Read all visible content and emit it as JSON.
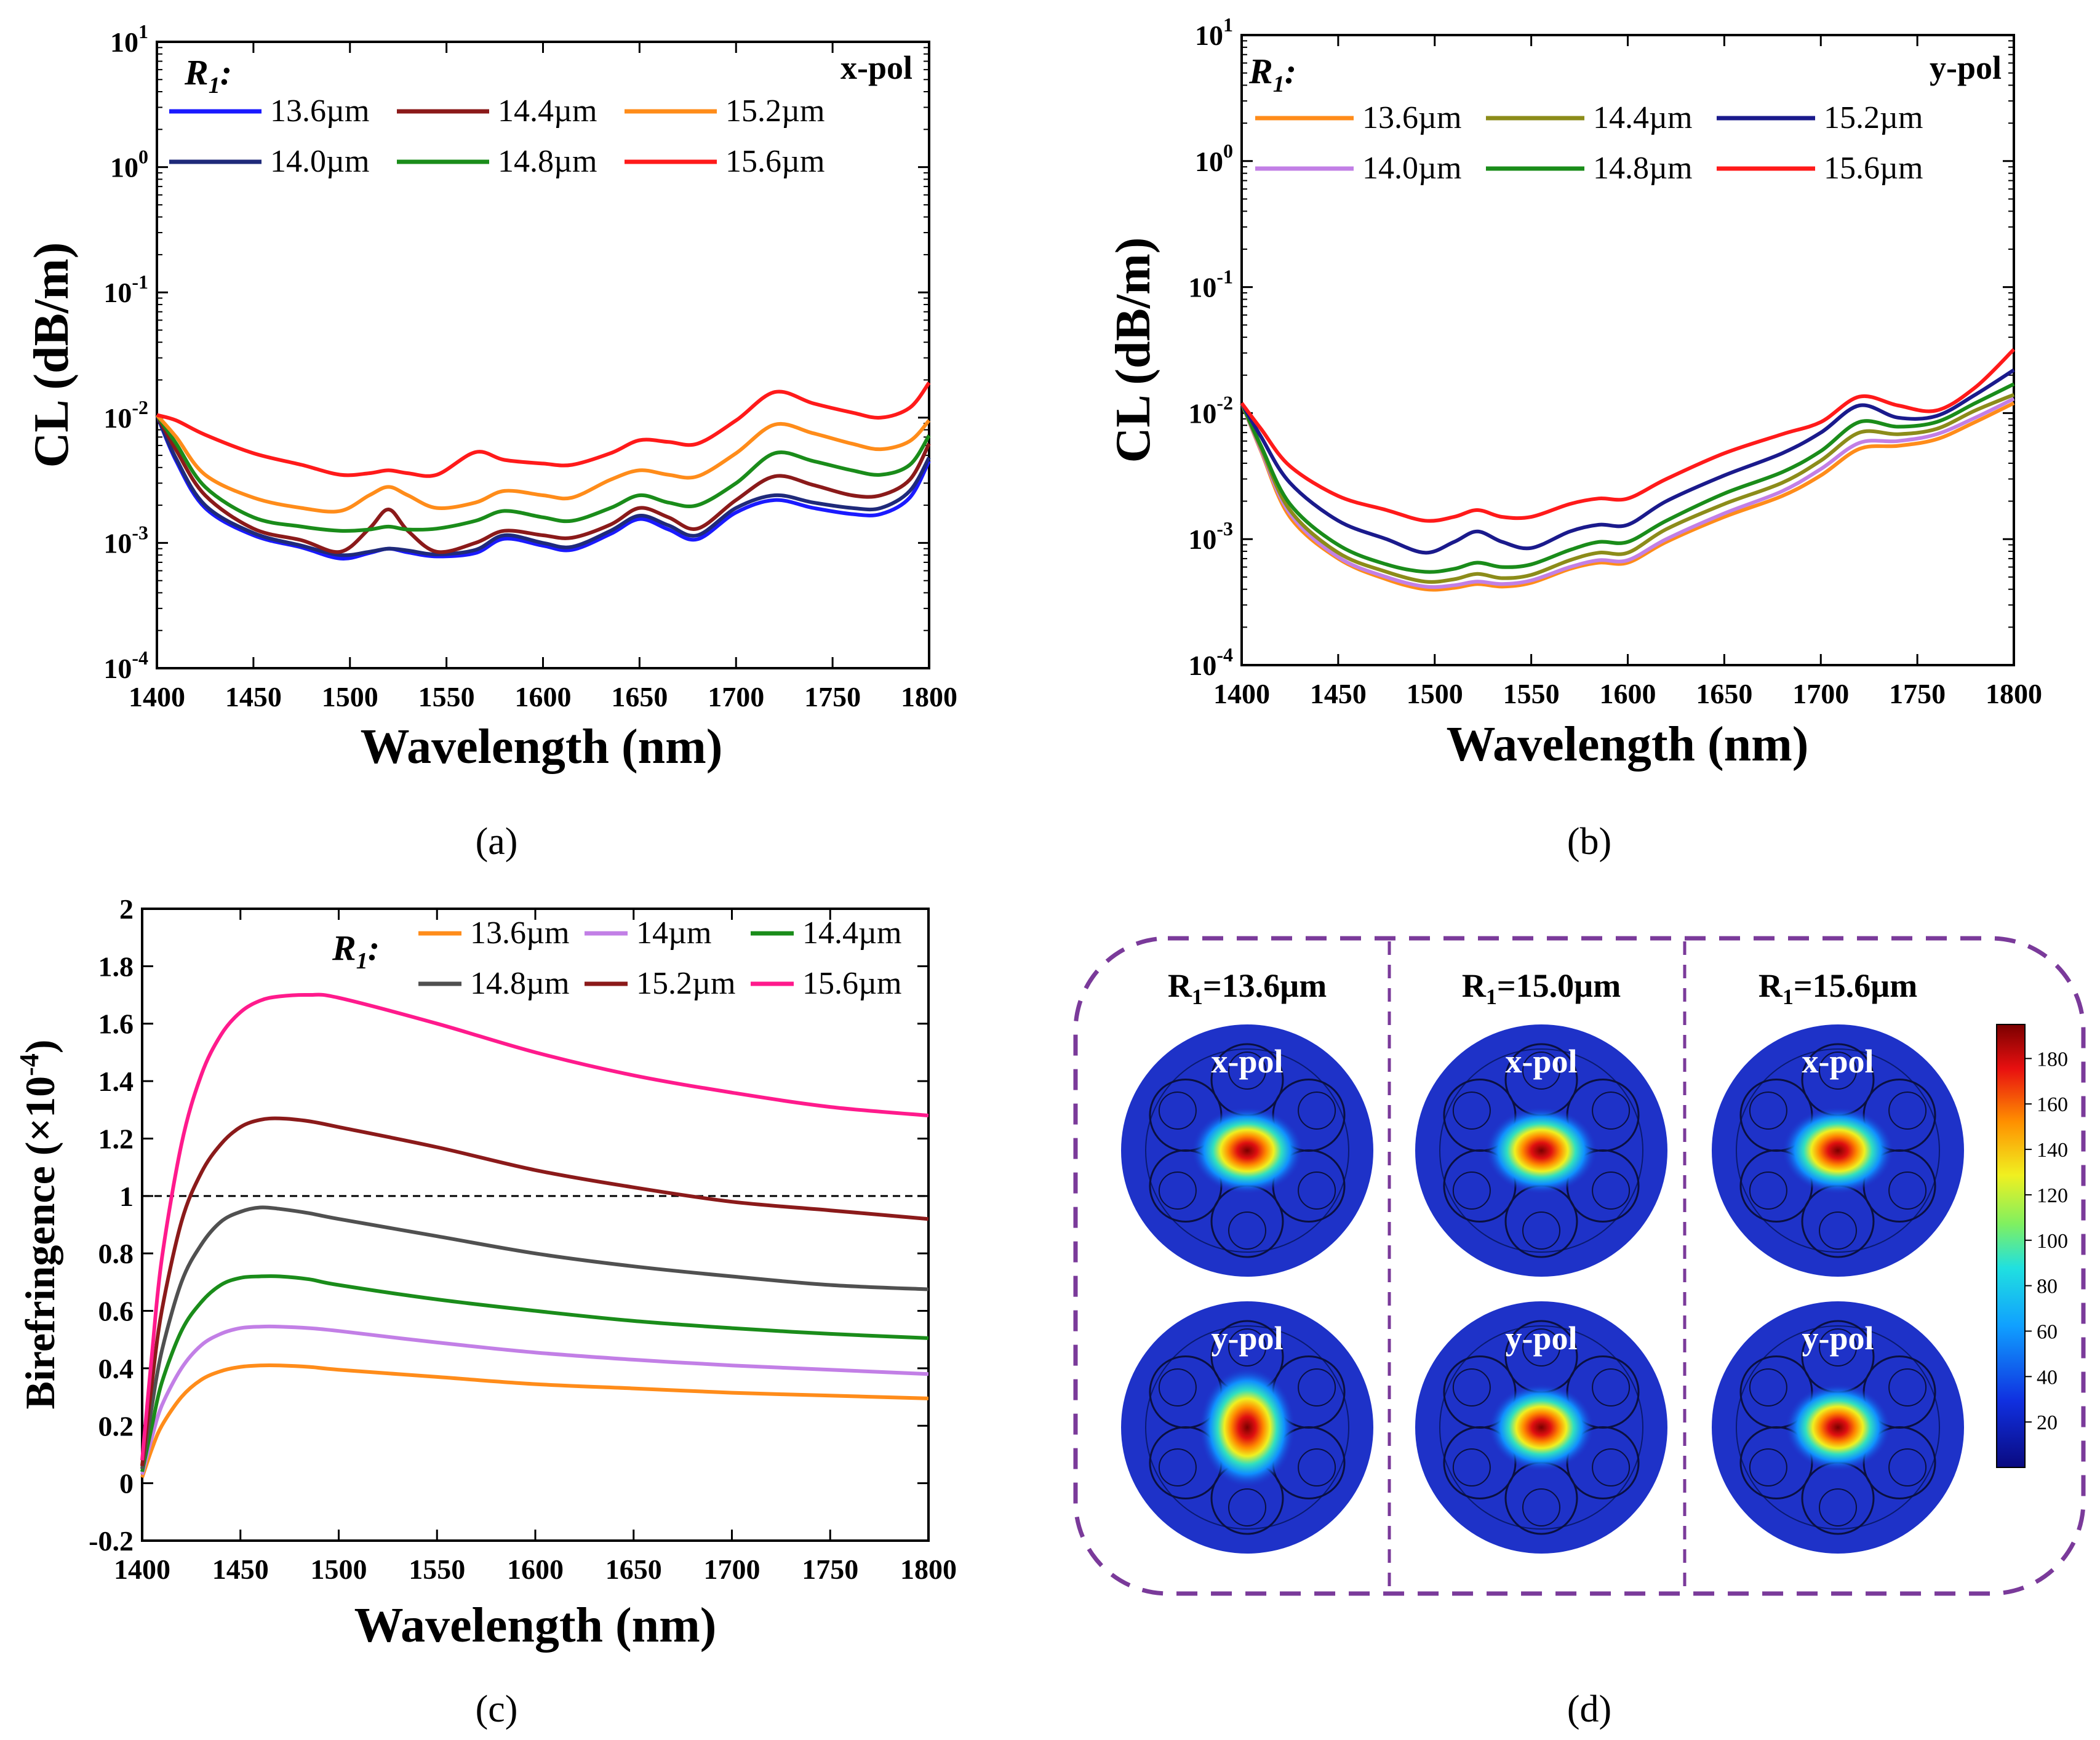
{
  "chart_data": [
    {
      "type": "line",
      "panel_label": "(a)",
      "polarization": "x-pol",
      "legend_title": "R1:",
      "legend_title_main": "R",
      "legend_title_sub": "1",
      "legend_title_colon": ":",
      "xlabel": "Wavelength (nm)",
      "ylabel": "CL (dB/m)",
      "xlim": [
        1400,
        1800
      ],
      "ylim": [
        0.0001,
        10
      ],
      "yscale": "log",
      "xticks": [
        1400,
        1450,
        1500,
        1550,
        1600,
        1650,
        1700,
        1750,
        1800
      ],
      "yticks": [
        {
          "base": "10",
          "exp": "-4"
        },
        {
          "base": "10",
          "exp": "-3"
        },
        {
          "base": "10",
          "exp": "-2"
        },
        {
          "base": "10",
          "exp": "-1"
        },
        {
          "base": "10",
          "exp": "0"
        },
        {
          "base": "10",
          "exp": "1"
        }
      ],
      "x": [
        1400,
        1410,
        1425,
        1450,
        1475,
        1495,
        1510,
        1520,
        1530,
        1545,
        1565,
        1580,
        1600,
        1615,
        1635,
        1650,
        1665,
        1680,
        1700,
        1720,
        1740,
        1760,
        1775,
        1790,
        1800
      ],
      "series": [
        {
          "name": "13.6µm",
          "color": "#1a1aff",
          "values": [
            0.0105,
            0.0045,
            0.0019,
            0.00115,
            0.00092,
            0.00075,
            0.00083,
            0.0009,
            0.00084,
            0.00078,
            0.00083,
            0.00108,
            0.00095,
            0.00088,
            0.00118,
            0.00155,
            0.00128,
            0.00107,
            0.00175,
            0.0022,
            0.0019,
            0.0017,
            0.0017,
            0.0023,
            0.0045
          ]
        },
        {
          "name": "14.0µm",
          "color": "#1f2a7a",
          "values": [
            0.0105,
            0.0047,
            0.002,
            0.0012,
            0.00095,
            0.0008,
            0.00085,
            0.0009,
            0.00087,
            0.00081,
            0.00088,
            0.00115,
            0.001,
            0.00093,
            0.00125,
            0.00165,
            0.00138,
            0.00115,
            0.0019,
            0.0024,
            0.0021,
            0.0019,
            0.0019,
            0.0026,
            0.0048
          ]
        },
        {
          "name": "14.4µm",
          "color": "#8b1a1a",
          "values": [
            0.0105,
            0.0055,
            0.0024,
            0.0013,
            0.00105,
            0.00085,
            0.0013,
            0.00185,
            0.00125,
            0.00085,
            0.001,
            0.00125,
            0.00115,
            0.0011,
            0.0014,
            0.0019,
            0.0016,
            0.0013,
            0.0022,
            0.0034,
            0.0029,
            0.0024,
            0.0024,
            0.0032,
            0.0062
          ]
        },
        {
          "name": "14.8µm",
          "color": "#1a8c1a",
          "values": [
            0.0105,
            0.0062,
            0.0028,
            0.0016,
            0.00135,
            0.00125,
            0.00128,
            0.00135,
            0.00128,
            0.0013,
            0.0015,
            0.0018,
            0.0016,
            0.0015,
            0.0019,
            0.0024,
            0.0021,
            0.002,
            0.003,
            0.0052,
            0.0045,
            0.0038,
            0.0035,
            0.0042,
            0.0072
          ]
        },
        {
          "name": "15.2µm",
          "color": "#ff8c1a",
          "values": [
            0.0105,
            0.007,
            0.0035,
            0.0023,
            0.0019,
            0.0018,
            0.0024,
            0.0028,
            0.0024,
            0.0019,
            0.0021,
            0.0026,
            0.0024,
            0.0023,
            0.0032,
            0.0038,
            0.0035,
            0.0034,
            0.0052,
            0.0088,
            0.0075,
            0.0062,
            0.0056,
            0.0065,
            0.0095
          ]
        },
        {
          "name": "15.6µm",
          "color": "#ff1a1a",
          "values": [
            0.0105,
            0.0095,
            0.0073,
            0.0052,
            0.0042,
            0.0035,
            0.0036,
            0.0038,
            0.0036,
            0.0035,
            0.0053,
            0.0046,
            0.0043,
            0.0042,
            0.0052,
            0.0066,
            0.0064,
            0.0062,
            0.0095,
            0.016,
            0.013,
            0.011,
            0.01,
            0.012,
            0.019
          ]
        }
      ]
    },
    {
      "type": "line",
      "panel_label": "(b)",
      "polarization": "y-pol",
      "legend_title": "R1:",
      "legend_title_main": "R",
      "legend_title_sub": "1",
      "legend_title_colon": ":",
      "xlabel": "Wavelength (nm)",
      "ylabel": "CL (dB/m)",
      "xlim": [
        1400,
        1800
      ],
      "ylim": [
        0.0001,
        10
      ],
      "yscale": "log",
      "xticks": [
        1400,
        1450,
        1500,
        1550,
        1600,
        1650,
        1700,
        1750,
        1800
      ],
      "yticks": [
        {
          "base": "10",
          "exp": "-4"
        },
        {
          "base": "10",
          "exp": "-3"
        },
        {
          "base": "10",
          "exp": "-2"
        },
        {
          "base": "10",
          "exp": "-1"
        },
        {
          "base": "10",
          "exp": "0"
        },
        {
          "base": "10",
          "exp": "1"
        }
      ],
      "x": [
        1400,
        1410,
        1425,
        1450,
        1475,
        1495,
        1510,
        1522,
        1535,
        1550,
        1570,
        1585,
        1600,
        1620,
        1650,
        1680,
        1700,
        1720,
        1740,
        1760,
        1780,
        1800
      ],
      "series": [
        {
          "name": "13.6µm",
          "color": "#ff8c1a",
          "values": [
            0.012,
            0.005,
            0.0015,
            0.0007,
            0.00048,
            0.0004,
            0.00041,
            0.00044,
            0.00042,
            0.00045,
            0.00058,
            0.00065,
            0.00065,
            0.00095,
            0.0015,
            0.0022,
            0.0032,
            0.0052,
            0.0055,
            0.0062,
            0.0085,
            0.012
          ]
        },
        {
          "name": "14.0µm",
          "color": "#c27fe6",
          "values": [
            0.012,
            0.0051,
            0.0016,
            0.00072,
            0.0005,
            0.00042,
            0.00043,
            0.00046,
            0.00044,
            0.00047,
            0.0006,
            0.00068,
            0.00068,
            0.001,
            0.0016,
            0.0024,
            0.0036,
            0.0058,
            0.006,
            0.0068,
            0.0092,
            0.013
          ]
        },
        {
          "name": "14.4µm",
          "color": "#8c8c1a",
          "values": [
            0.012,
            0.0053,
            0.0017,
            0.00078,
            0.00055,
            0.00046,
            0.00048,
            0.00053,
            0.00049,
            0.00052,
            0.00068,
            0.00078,
            0.00078,
            0.0012,
            0.0019,
            0.0028,
            0.0042,
            0.007,
            0.0068,
            0.0075,
            0.0105,
            0.014
          ]
        },
        {
          "name": "14.8µm",
          "color": "#1a8c1a",
          "values": [
            0.012,
            0.0055,
            0.0019,
            0.0009,
            0.00063,
            0.00055,
            0.00058,
            0.00065,
            0.0006,
            0.00063,
            0.00082,
            0.00095,
            0.00095,
            0.0014,
            0.0023,
            0.0034,
            0.005,
            0.0085,
            0.0078,
            0.0085,
            0.012,
            0.017
          ]
        },
        {
          "name": "15.2µm",
          "color": "#1a1a8c",
          "values": [
            0.012,
            0.0065,
            0.0028,
            0.0014,
            0.001,
            0.00078,
            0.00095,
            0.00115,
            0.00095,
            0.00085,
            0.00115,
            0.0013,
            0.0013,
            0.002,
            0.0032,
            0.0048,
            0.007,
            0.0115,
            0.0092,
            0.0095,
            0.014,
            0.022
          ]
        },
        {
          "name": "15.6µm",
          "color": "#ff1a1a",
          "values": [
            0.012,
            0.0075,
            0.0038,
            0.0022,
            0.0017,
            0.0014,
            0.0015,
            0.0017,
            0.0015,
            0.0015,
            0.0019,
            0.0021,
            0.0021,
            0.003,
            0.0048,
            0.0068,
            0.0085,
            0.0135,
            0.0115,
            0.0105,
            0.016,
            0.032
          ]
        }
      ]
    },
    {
      "type": "line",
      "panel_label": "(c)",
      "legend_title": "R1:",
      "legend_title_main": "R",
      "legend_title_sub": "1",
      "legend_title_colon": ":",
      "xlabel": "Wavelength (nm)",
      "ylabel": "Birefringence (×10",
      "ylabel_exp": "-4",
      "ylabel_close": ")",
      "xlim": [
        1400,
        1800
      ],
      "ylim": [
        -0.2,
        2
      ],
      "xticks": [
        1400,
        1450,
        1500,
        1550,
        1600,
        1650,
        1700,
        1750,
        1800
      ],
      "yticks": [
        -0.2,
        0,
        0.2,
        0.4,
        0.6,
        0.8,
        1,
        1.2,
        1.4,
        1.6,
        1.8,
        2
      ],
      "reference_line": 1,
      "x": [
        1400,
        1405,
        1410,
        1420,
        1430,
        1440,
        1450,
        1460,
        1470,
        1485,
        1500,
        1550,
        1600,
        1650,
        1700,
        1750,
        1800
      ],
      "series": [
        {
          "name": "13.6µm",
          "color": "#ff8c1a",
          "values": [
            0.02,
            0.12,
            0.2,
            0.3,
            0.36,
            0.39,
            0.405,
            0.41,
            0.41,
            0.405,
            0.395,
            0.37,
            0.345,
            0.33,
            0.315,
            0.305,
            0.295
          ]
        },
        {
          "name": "14µm",
          "color": "#c27fe6",
          "values": [
            0.03,
            0.16,
            0.27,
            0.4,
            0.48,
            0.52,
            0.54,
            0.545,
            0.545,
            0.54,
            0.53,
            0.49,
            0.455,
            0.43,
            0.41,
            0.395,
            0.38
          ]
        },
        {
          "name": "14.4µm",
          "color": "#1a8c1a",
          "values": [
            0.04,
            0.2,
            0.35,
            0.53,
            0.63,
            0.69,
            0.715,
            0.72,
            0.72,
            0.71,
            0.69,
            0.64,
            0.6,
            0.565,
            0.54,
            0.52,
            0.505
          ]
        },
        {
          "name": "14.8µm",
          "color": "#505050",
          "values": [
            0.05,
            0.27,
            0.46,
            0.7,
            0.83,
            0.91,
            0.945,
            0.96,
            0.955,
            0.94,
            0.92,
            0.86,
            0.8,
            0.755,
            0.72,
            0.69,
            0.675
          ]
        },
        {
          "name": "15.2µm",
          "color": "#8b1a1a",
          "values": [
            0.06,
            0.35,
            0.6,
            0.91,
            1.08,
            1.18,
            1.24,
            1.265,
            1.27,
            1.26,
            1.24,
            1.17,
            1.09,
            1.03,
            0.98,
            0.95,
            0.92
          ]
        },
        {
          "name": "15.6µm",
          "color": "#ff1a8c",
          "values": [
            0.08,
            0.45,
            0.78,
            1.18,
            1.42,
            1.56,
            1.64,
            1.68,
            1.695,
            1.7,
            1.69,
            1.6,
            1.5,
            1.42,
            1.36,
            1.31,
            1.28
          ]
        }
      ]
    }
  ],
  "panel_d": {
    "panel_label": "(d)",
    "columns": [
      {
        "title_main": "R",
        "title_sub": "1",
        "title_rest": "=13.6µm"
      },
      {
        "title_main": "R",
        "title_sub": "1",
        "title_rest": "=15.0µm"
      },
      {
        "title_main": "R",
        "title_sub": "1",
        "title_rest": "=15.6µm"
      }
    ],
    "row_labels": [
      "x-pol",
      "y-pol"
    ],
    "colorbar_ticks": [
      "180",
      "160",
      "140",
      "120",
      "100",
      "80",
      "60",
      "40",
      "20"
    ],
    "border_color": "#7a3a9a"
  }
}
